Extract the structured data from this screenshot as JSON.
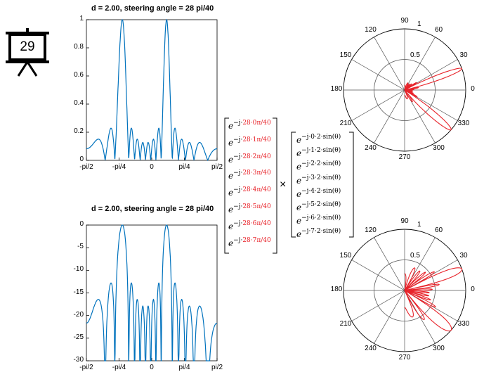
{
  "slide_badge": {
    "number": "29",
    "icon": "projector-screen-icon"
  },
  "charts": [
    {
      "title": "d = 2.00, steering angle  = 28 pi/40",
      "yticks": [
        "1",
        "0.8",
        "0.6",
        "0.4",
        "0.2",
        "0"
      ],
      "xticks": [
        "-pi/2",
        "-pi/4",
        "0",
        "pi/4",
        "pi/2"
      ]
    },
    {
      "title": "d = 2.00, steering angle  = 28 pi/40",
      "yticks": [
        "0",
        "-5",
        "-10",
        "-15",
        "-20",
        "-25",
        "-30"
      ],
      "xticks": [
        "-pi/2",
        "-pi/4",
        "0",
        "pi/4",
        "pi/2"
      ]
    }
  ],
  "polar": {
    "angle_labels": [
      "0",
      "30",
      "60",
      "90",
      "120",
      "150",
      "180",
      "210",
      "240",
      "270",
      "300",
      "330"
    ],
    "radial_labels": [
      "1",
      "0.5"
    ]
  },
  "equation": {
    "steering_terms": [
      "e−j·28·0π/40",
      "e−j·28·1π/40",
      "e−j·28·2π/40",
      "e−j·28·3π/40",
      "e−j·28·4π/40",
      "e−j·28·5π/40",
      "e−j·28·6π/40",
      "e−j·28·7π/40"
    ],
    "phase_terms": [
      "e−j·0·2·sin(θ)",
      "e−j·1·2·sin(θ)",
      "e−j·2·2·sin(θ)",
      "e−j·3·2·sin(θ)",
      "e−j·4·2·sin(θ)",
      "e−j·5·2·sin(θ)",
      "e−j·6·2·sin(θ)",
      "e−j·7·2·sin(θ)"
    ],
    "operator": "×",
    "highlight_color": "#e8232a"
  },
  "chart_data": [
    {
      "type": "line",
      "title": "d = 2.00, steering angle  = 28 pi/40",
      "xlabel": "",
      "ylabel": "",
      "xlim": [
        -1.5708,
        1.5708
      ],
      "ylim": [
        0,
        1
      ],
      "series": [
        {
          "color": "#0072bd",
          "x": [
            -1.5708,
            -0.7854,
            -0.5,
            0,
            0.5,
            0.7854,
            1.5708
          ],
          "values": [
            1.0,
            0.0,
            0.25,
            0.17,
            0.17,
            0.13,
            0.14
          ]
        }
      ]
    },
    {
      "type": "line",
      "title": "d = 2.00, steering angle  = 28 pi/40",
      "xlabel": "",
      "ylabel": "",
      "xlim": [
        -1.5708,
        1.5708
      ],
      "ylim": [
        -30,
        0
      ],
      "series": [
        {
          "color": "#0072bd",
          "x": [
            -1.5708,
            -0.7854,
            -0.5,
            0,
            0.5,
            0.7854,
            1.5708
          ],
          "values": [
            0,
            -30,
            -13.8,
            -17.8,
            -19.6,
            -19.6,
            -19.6
          ]
        }
      ]
    }
  ]
}
